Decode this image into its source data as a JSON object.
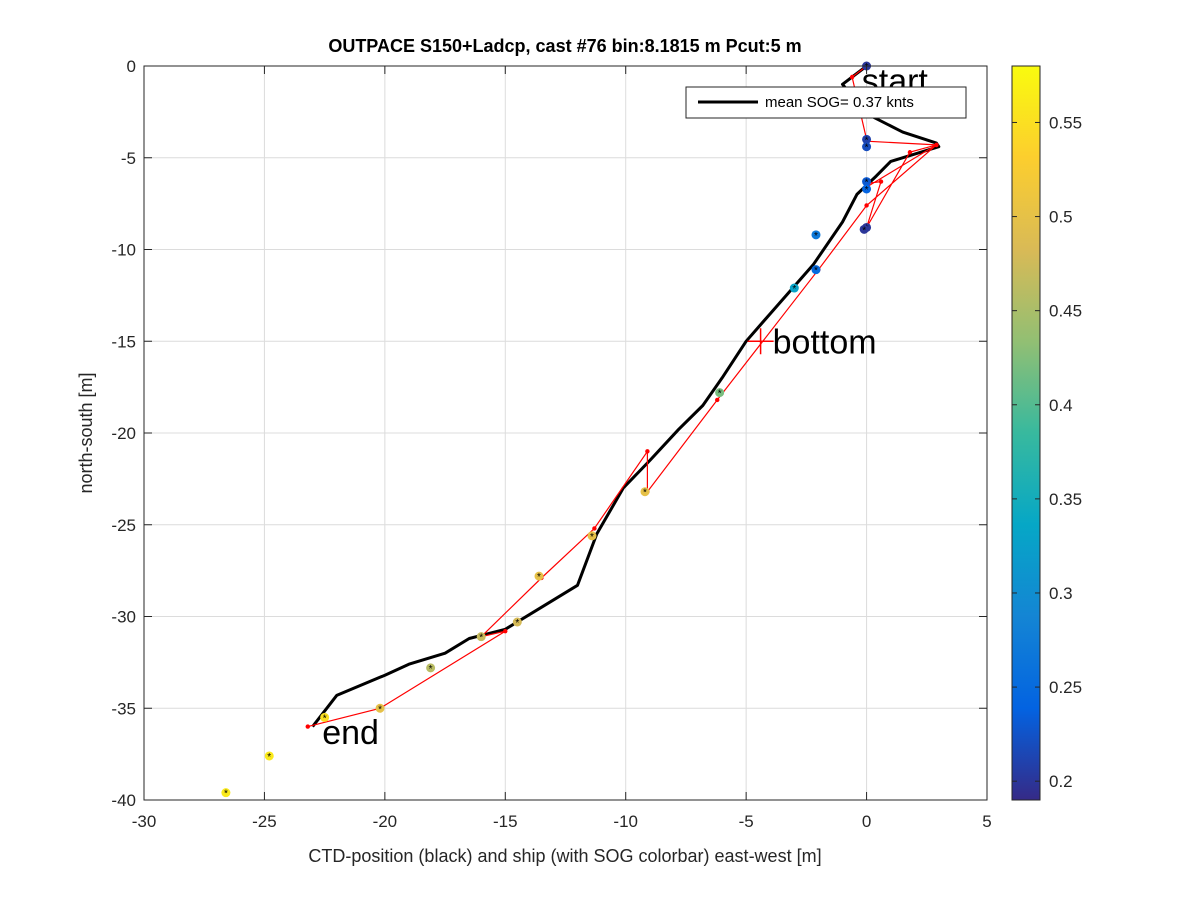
{
  "chart_data": {
    "type": "scatter",
    "title": "OUTPACE S150+Ladcp, cast #76 bin:8.1815 m  Pcut:5 m",
    "xlabel": "CTD-position (black) and ship (with SOG colorbar) east-west [m]",
    "ylabel": "north-south [m]",
    "xlim": [
      -30,
      5
    ],
    "ylim": [
      -40,
      0
    ],
    "xticks": [
      "-30",
      "-25",
      "-20",
      "-15",
      "-10",
      "-5",
      "0",
      "5"
    ],
    "yticks": [
      "0",
      "-5",
      "-10",
      "-15",
      "-20",
      "-25",
      "-30",
      "-35",
      "-40"
    ],
    "grid": true,
    "legend": {
      "label": "mean SOG=  0.37 knts",
      "placement": "top-right"
    },
    "colorbar": {
      "range": [
        0.19,
        0.58
      ],
      "ticks": [
        "0.2",
        "0.25",
        "0.3",
        "0.35",
        "0.4",
        "0.45",
        "0.5",
        "0.55"
      ]
    },
    "ctd_track": {
      "x": [
        0.0,
        -1.0,
        0.0,
        1.5,
        2.9,
        3.0,
        1.0,
        0.4,
        -0.4,
        -1.0,
        -2.2,
        -3.0,
        -4.0,
        -5.0,
        -6.0,
        -6.8,
        -7.8,
        -9.0,
        -10.1,
        -11.2,
        -12.0,
        -13.5,
        -15.0,
        -16.5,
        -17.5,
        -19.0,
        -20.0,
        -22.0,
        -23.0
      ],
      "y": [
        0.0,
        -1.0,
        -2.6,
        -3.6,
        -4.2,
        -4.4,
        -5.2,
        -6.0,
        -7.0,
        -8.5,
        -10.8,
        -12.0,
        -13.5,
        -15.0,
        -17.0,
        -18.5,
        -19.8,
        -21.5,
        -23.0,
        -25.5,
        -28.3,
        -29.5,
        -30.7,
        -31.2,
        -32.0,
        -32.6,
        -33.2,
        -34.3,
        -36.0
      ]
    },
    "ship_track": {
      "x": [
        0.0,
        -0.6,
        0.0,
        0.0,
        2.9,
        1.8,
        0.0,
        0.6,
        0.0,
        0.0,
        2.9,
        0.0,
        -2.0,
        -6.2,
        -9.1,
        -9.1,
        -11.3,
        -13.5,
        -16.0,
        -15.0,
        -20.2,
        -23.2
      ],
      "y": [
        0.0,
        -0.6,
        -4.0,
        -4.1,
        -4.3,
        -4.7,
        -8.8,
        -6.3,
        -6.4,
        -6.6,
        -4.3,
        -7.6,
        -11.1,
        -18.2,
        -23.2,
        -21.0,
        -25.2,
        -27.9,
        -31.1,
        -30.8,
        -35.0,
        -36.0
      ]
    },
    "sog_points": {
      "x": [
        0.0,
        0.0,
        0.0,
        0.0,
        0.0,
        0.0,
        -2.1,
        -0.1,
        -2.1,
        -3.0,
        -6.1,
        -9.2,
        -11.4,
        -13.6,
        -14.5,
        -16.0,
        -18.1,
        -20.2,
        -22.5,
        -24.8,
        -26.6
      ],
      "y": [
        0.0,
        -4.0,
        -4.4,
        -6.3,
        -6.7,
        -8.8,
        -9.2,
        -8.9,
        -11.1,
        -12.1,
        -17.8,
        -23.2,
        -25.6,
        -27.8,
        -30.3,
        -31.1,
        -32.8,
        -35.0,
        -35.5,
        -37.6,
        -39.6
      ],
      "sog": [
        0.2,
        0.21,
        0.22,
        0.23,
        0.24,
        0.2,
        0.27,
        0.2,
        0.25,
        0.33,
        0.42,
        0.5,
        0.5,
        0.5,
        0.48,
        0.47,
        0.46,
        0.5,
        0.55,
        0.56,
        0.56
      ]
    },
    "bottom_marker": {
      "x": -4.4,
      "y": -15.0
    },
    "annotations": [
      {
        "text": "start",
        "x": -0.2,
        "y": -0.8
      },
      {
        "text": "bottom",
        "x": -3.9,
        "y": -15.0
      },
      {
        "text": "end",
        "x": -22.6,
        "y": -36.3
      }
    ]
  }
}
